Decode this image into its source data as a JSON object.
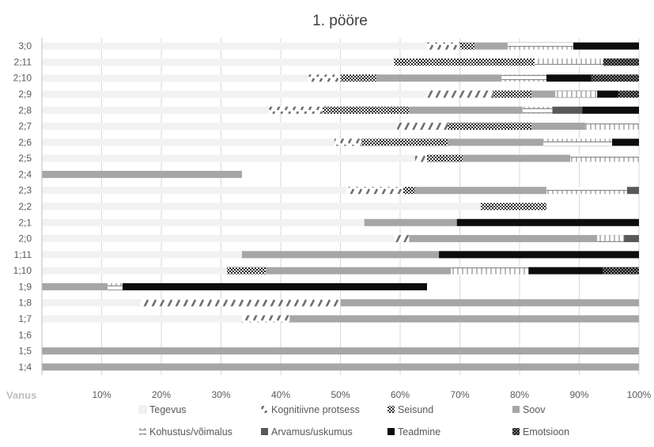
{
  "chart_data": {
    "type": "bar",
    "orientation": "horizontal",
    "stacked": "percent",
    "title": "1. pööre",
    "ylabel": "Vanus",
    "xlim": [
      0,
      100
    ],
    "x_ticks": [
      "10%",
      "20%",
      "30%",
      "40%",
      "50%",
      "60%",
      "70%",
      "80%",
      "90%",
      "100%"
    ],
    "grid": true,
    "legend_position": "bottom",
    "categories": [
      "3;0",
      "2;11",
      "2;10",
      "2;9",
      "2;8",
      "2;7",
      "2;6",
      "2;5",
      "2;4",
      "2;3",
      "2;2",
      "2;1",
      "2;0",
      "1;11",
      "1;10",
      "1;9",
      "1;8",
      "1;7",
      "1;6",
      "1;5",
      "1;4"
    ],
    "series": [
      {
        "name": "Tegevus",
        "color": "#f2f2f2",
        "pattern": "solid",
        "values": [
          64.5,
          59,
          44.5,
          64.5,
          38,
          59.5,
          49,
          62.5,
          0,
          51,
          73.5,
          54,
          59,
          33.5,
          31,
          0,
          16.5,
          33.5,
          0,
          0,
          0
        ]
      },
      {
        "name": "Kognitiivne protsess",
        "color": "#7f7f7f",
        "pattern": "slash",
        "values": [
          5.5,
          0,
          5.5,
          11,
          9,
          8.5,
          4.5,
          2,
          0,
          9.5,
          0,
          0,
          2.5,
          0,
          0,
          0,
          33.5,
          8,
          0,
          0,
          0
        ]
      },
      {
        "name": "Seisund",
        "color": "#404040",
        "pattern": "checker",
        "values": [
          2.5,
          23.5,
          6,
          6.5,
          14.5,
          14,
          14.5,
          6,
          0,
          2,
          11,
          0,
          0,
          0,
          6.5,
          0,
          0,
          0,
          0,
          0,
          0
        ]
      },
      {
        "name": "Soov",
        "color": "#a6a6a6",
        "pattern": "solid",
        "values": [
          5.5,
          0,
          21,
          4,
          19,
          9,
          16,
          18,
          33.5,
          22,
          0,
          15.5,
          31.5,
          33,
          31,
          11,
          50,
          58.5,
          0,
          100,
          100
        ]
      },
      {
        "name": "Kohustus/võimalus",
        "color": "#808080",
        "pattern": "ticks",
        "values": [
          11,
          11.5,
          7.5,
          7,
          5,
          9,
          11.5,
          11.5,
          0,
          13.5,
          0,
          0,
          4.5,
          0,
          13,
          2.5,
          0,
          0,
          0,
          0,
          0
        ]
      },
      {
        "name": "Arvamus/uskumus",
        "color": "#595959",
        "pattern": "solid",
        "values": [
          0,
          0,
          0,
          0,
          5,
          0,
          0,
          0,
          0,
          2,
          0,
          0,
          2.5,
          0,
          0,
          0,
          0,
          0,
          0,
          0,
          0
        ]
      },
      {
        "name": "Teadmine",
        "color": "#0d0d0d",
        "pattern": "solid",
        "values": [
          11,
          0,
          7.5,
          3.5,
          9.5,
          0,
          4.5,
          0,
          0,
          0,
          0,
          30.5,
          0,
          33.5,
          12.5,
          51,
          0,
          0,
          0,
          0,
          0
        ]
      },
      {
        "name": "Emotsioon",
        "color": "#0d0d0d",
        "pattern": "dots",
        "values": [
          0,
          6,
          8,
          3.5,
          0,
          0,
          0,
          0,
          0,
          0,
          0,
          0,
          0,
          0,
          6,
          0,
          0,
          0,
          0,
          0,
          0
        ]
      }
    ]
  }
}
